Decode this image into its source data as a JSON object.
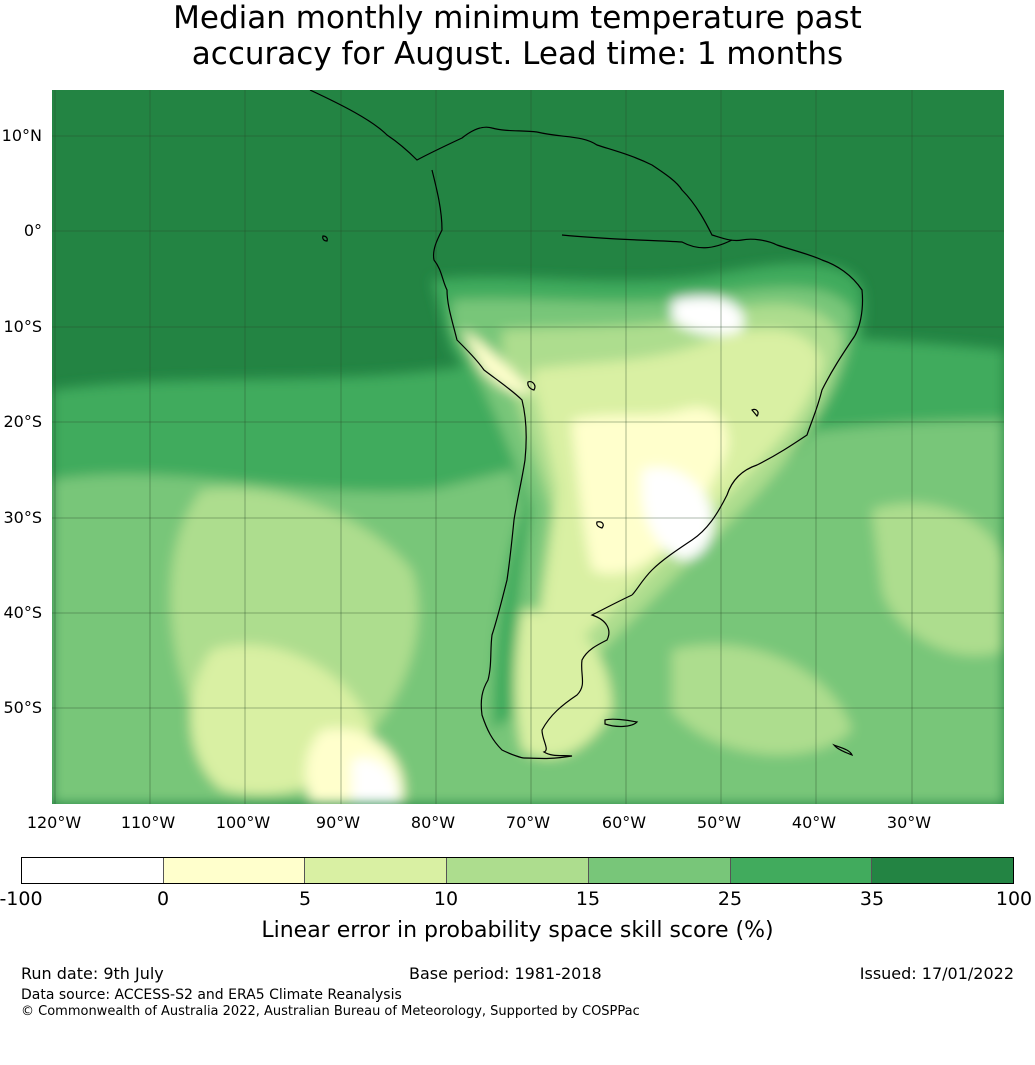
{
  "title_line1": "Median monthly minimum temperature past",
  "title_line2": "accuracy for August. Lead time: 1 months",
  "map": {
    "lat_labels": [
      "10°N",
      "0°",
      "10°S",
      "20°S",
      "30°S",
      "40°S",
      "50°S"
    ],
    "lon_labels": [
      "120°W",
      "110°W",
      "100°W",
      "90°W",
      "80°W",
      "70°W",
      "60°W",
      "50°W",
      "40°W",
      "30°W"
    ],
    "ocean_base_color": "#238443",
    "colors": [
      "#ffffff",
      "#ffffcc",
      "#d9f0a3",
      "#addd8e",
      "#78c679",
      "#41ab5d",
      "#238443"
    ]
  },
  "colorbar": {
    "ticks": [
      "-100",
      "0",
      "5",
      "10",
      "15",
      "25",
      "35",
      "100"
    ],
    "colors": [
      "#ffffff",
      "#ffffcc",
      "#d9f0a3",
      "#addd8e",
      "#78c679",
      "#41ab5d",
      "#238443"
    ],
    "label": "Linear error in probability space skill score (%)"
  },
  "footer": {
    "run_date": "Run date: 9th July",
    "base_period": "Base period: 1981-2018",
    "issued": "Issued: 17/01/2022",
    "data_source": "Data source: ACCESS-S2 and ERA5 Climate Reanalysis",
    "copyright": "© Commonwealth of Australia 2022, Australian Bureau of Meteorology, Supported by COSPPac"
  }
}
